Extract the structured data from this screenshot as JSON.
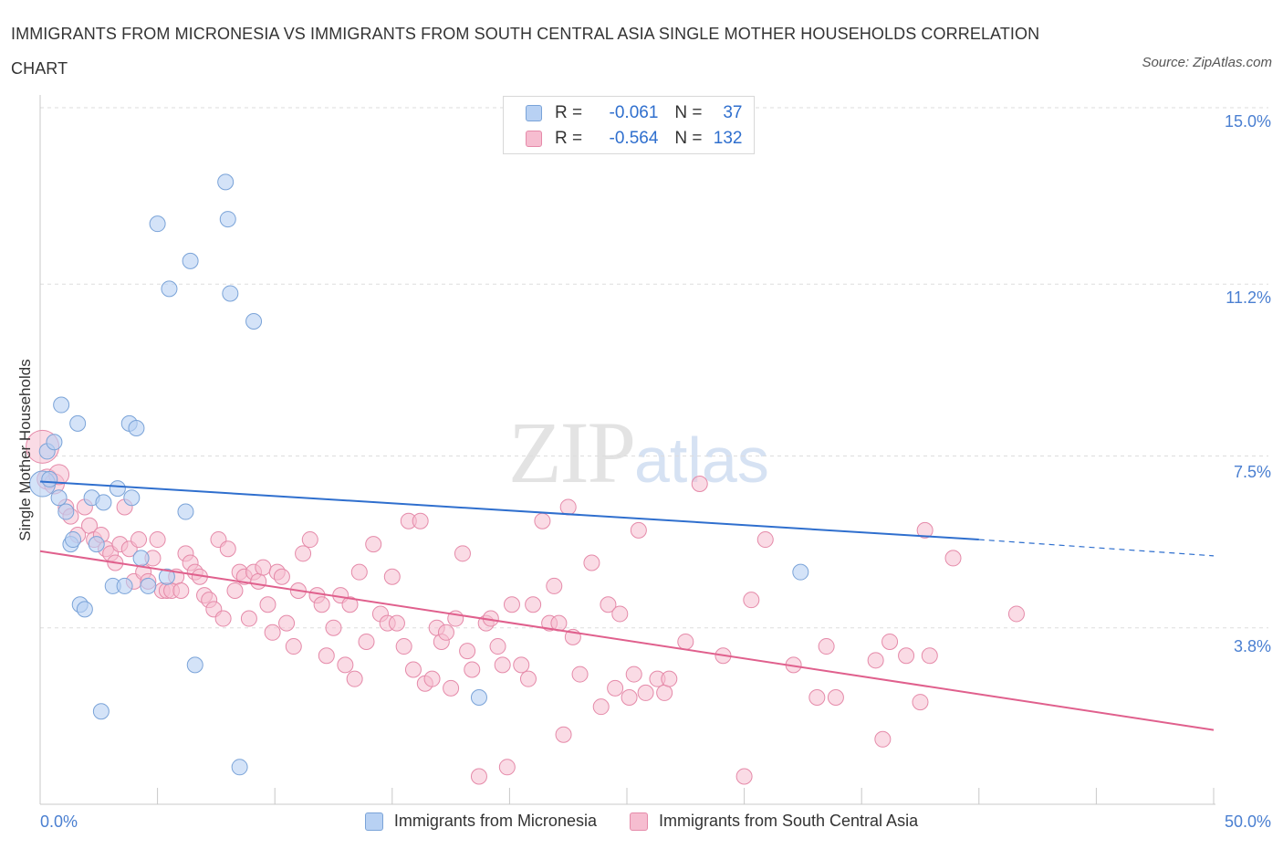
{
  "header": {
    "title": "IMMIGRANTS FROM MICRONESIA VS IMMIGRANTS FROM SOUTH CENTRAL ASIA SINGLE MOTHER HOUSEHOLDS CORRELATION CHART",
    "source": "Source: ZipAtlas.com"
  },
  "watermark": {
    "zip": "ZIP",
    "atlas": "atlas"
  },
  "legend_top": {
    "r_label": "R =",
    "n_label": "N =",
    "series": [
      {
        "r": "-0.061",
        "n": "37"
      },
      {
        "r": "-0.564",
        "n": "132"
      }
    ]
  },
  "axes": {
    "x_min_label": "0.0%",
    "x_max_label": "50.0%",
    "y_labels": [
      "15.0%",
      "11.2%",
      "7.5%",
      "3.8%"
    ],
    "y_title": "Single Mother Households"
  },
  "legend_bottom": [
    "Immigrants from Micronesia",
    "Immigrants from South Central Asia"
  ],
  "colors": {
    "blue_fill": "#b8d1f3",
    "blue_stroke": "#7aa3d8",
    "blue_line": "#2f6fce",
    "pink_fill": "#f6bdd0",
    "pink_stroke": "#e58aa9",
    "pink_line": "#e0608d",
    "grid": "#dddddd",
    "tick_label": "#4a7fd1"
  },
  "chart_data": {
    "type": "scatter",
    "title": "IMMIGRANTS FROM MICRONESIA VS IMMIGRANTS FROM SOUTH CENTRAL ASIA SINGLE MOTHER HOUSEHOLDS CORRELATION CHART",
    "xlabel": "",
    "ylabel": "Single Mother Households",
    "xlim": [
      0,
      50
    ],
    "ylim": [
      0,
      15
    ],
    "y_ticks": [
      3.8,
      7.5,
      11.2,
      15.0
    ],
    "grid": true,
    "legend_placement": "bottom",
    "series": [
      {
        "name": "Immigrants from Micronesia",
        "r": -0.061,
        "n": 37,
        "trend": {
          "x": [
            0,
            40
          ],
          "y": [
            6.95,
            5.7
          ],
          "dashed_to": [
            50,
            5.35
          ]
        },
        "points": [
          [
            0.1,
            6.9
          ],
          [
            0.3,
            7.6
          ],
          [
            0.4,
            7.0
          ],
          [
            0.6,
            7.8
          ],
          [
            0.8,
            6.6
          ],
          [
            0.9,
            8.6
          ],
          [
            1.1,
            6.3
          ],
          [
            1.3,
            5.6
          ],
          [
            1.4,
            5.7
          ],
          [
            1.6,
            8.2
          ],
          [
            1.7,
            4.3
          ],
          [
            1.9,
            4.2
          ],
          [
            2.2,
            6.6
          ],
          [
            2.4,
            5.6
          ],
          [
            2.6,
            2.0
          ],
          [
            2.7,
            6.5
          ],
          [
            3.1,
            4.7
          ],
          [
            3.3,
            6.8
          ],
          [
            3.6,
            4.7
          ],
          [
            3.8,
            8.2
          ],
          [
            3.9,
            6.6
          ],
          [
            4.1,
            8.1
          ],
          [
            4.3,
            5.3
          ],
          [
            4.6,
            4.7
          ],
          [
            5.0,
            12.5
          ],
          [
            5.4,
            4.9
          ],
          [
            5.5,
            11.1
          ],
          [
            6.2,
            6.3
          ],
          [
            6.4,
            11.7
          ],
          [
            6.6,
            3.0
          ],
          [
            7.9,
            13.4
          ],
          [
            8.0,
            12.6
          ],
          [
            8.1,
            11.0
          ],
          [
            8.5,
            0.8
          ],
          [
            9.1,
            10.4
          ],
          [
            18.7,
            2.3
          ],
          [
            32.4,
            5.0
          ]
        ]
      },
      {
        "name": "Immigrants from South Central Asia",
        "r": -0.564,
        "n": 132,
        "trend": {
          "x": [
            0,
            50
          ],
          "y": [
            5.45,
            1.6
          ]
        },
        "points": [
          [
            0.1,
            7.7
          ],
          [
            0.3,
            7.0
          ],
          [
            0.6,
            6.9
          ],
          [
            0.8,
            7.1
          ],
          [
            1.1,
            6.4
          ],
          [
            1.3,
            6.2
          ],
          [
            1.6,
            5.8
          ],
          [
            1.9,
            6.4
          ],
          [
            2.1,
            6.0
          ],
          [
            2.3,
            5.7
          ],
          [
            2.6,
            5.8
          ],
          [
            2.8,
            5.5
          ],
          [
            3.0,
            5.4
          ],
          [
            3.2,
            5.2
          ],
          [
            3.4,
            5.6
          ],
          [
            3.6,
            6.4
          ],
          [
            3.8,
            5.5
          ],
          [
            4.0,
            4.8
          ],
          [
            4.2,
            5.7
          ],
          [
            4.4,
            5.0
          ],
          [
            4.6,
            4.8
          ],
          [
            4.8,
            5.3
          ],
          [
            5.0,
            5.7
          ],
          [
            5.2,
            4.6
          ],
          [
            5.4,
            4.6
          ],
          [
            5.6,
            4.6
          ],
          [
            5.8,
            4.9
          ],
          [
            6.0,
            4.6
          ],
          [
            6.2,
            5.4
          ],
          [
            6.4,
            5.2
          ],
          [
            6.6,
            5.0
          ],
          [
            6.8,
            4.9
          ],
          [
            7.0,
            4.5
          ],
          [
            7.2,
            4.4
          ],
          [
            7.4,
            4.2
          ],
          [
            7.6,
            5.7
          ],
          [
            7.8,
            4.0
          ],
          [
            8.0,
            5.5
          ],
          [
            8.3,
            4.6
          ],
          [
            8.5,
            5.0
          ],
          [
            8.7,
            4.9
          ],
          [
            8.9,
            4.0
          ],
          [
            9.1,
            5.0
          ],
          [
            9.3,
            4.8
          ],
          [
            9.5,
            5.1
          ],
          [
            9.7,
            4.3
          ],
          [
            9.9,
            3.7
          ],
          [
            10.1,
            5.0
          ],
          [
            10.3,
            4.9
          ],
          [
            10.5,
            3.9
          ],
          [
            10.8,
            3.4
          ],
          [
            11.0,
            4.6
          ],
          [
            11.2,
            5.4
          ],
          [
            11.5,
            5.7
          ],
          [
            11.8,
            4.5
          ],
          [
            12.0,
            4.3
          ],
          [
            12.2,
            3.2
          ],
          [
            12.5,
            3.8
          ],
          [
            12.8,
            4.5
          ],
          [
            13.0,
            3.0
          ],
          [
            13.2,
            4.3
          ],
          [
            13.4,
            2.7
          ],
          [
            13.6,
            5.0
          ],
          [
            13.9,
            3.5
          ],
          [
            14.2,
            5.6
          ],
          [
            14.5,
            4.1
          ],
          [
            14.8,
            3.9
          ],
          [
            15.0,
            4.9
          ],
          [
            15.2,
            3.9
          ],
          [
            15.5,
            3.4
          ],
          [
            15.7,
            6.1
          ],
          [
            15.9,
            2.9
          ],
          [
            16.2,
            6.1
          ],
          [
            16.4,
            2.6
          ],
          [
            16.7,
            2.7
          ],
          [
            16.9,
            3.8
          ],
          [
            17.1,
            3.5
          ],
          [
            17.3,
            3.7
          ],
          [
            17.5,
            2.5
          ],
          [
            17.7,
            4.0
          ],
          [
            18.0,
            5.4
          ],
          [
            18.2,
            3.3
          ],
          [
            18.4,
            2.9
          ],
          [
            18.7,
            0.6
          ],
          [
            19.0,
            3.9
          ],
          [
            19.2,
            4.0
          ],
          [
            19.5,
            3.4
          ],
          [
            19.7,
            3.0
          ],
          [
            19.9,
            0.8
          ],
          [
            20.1,
            4.3
          ],
          [
            20.5,
            3.0
          ],
          [
            20.8,
            2.7
          ],
          [
            21.0,
            4.3
          ],
          [
            21.4,
            6.1
          ],
          [
            21.7,
            3.9
          ],
          [
            21.9,
            4.7
          ],
          [
            22.1,
            3.9
          ],
          [
            22.3,
            1.5
          ],
          [
            22.5,
            6.4
          ],
          [
            22.7,
            3.6
          ],
          [
            23.0,
            2.8
          ],
          [
            23.5,
            5.2
          ],
          [
            23.9,
            2.1
          ],
          [
            24.2,
            4.3
          ],
          [
            24.5,
            2.5
          ],
          [
            24.7,
            4.1
          ],
          [
            25.1,
            2.3
          ],
          [
            25.3,
            2.8
          ],
          [
            25.5,
            5.9
          ],
          [
            25.8,
            2.4
          ],
          [
            26.3,
            2.7
          ],
          [
            26.6,
            2.4
          ],
          [
            26.8,
            2.7
          ],
          [
            27.5,
            3.5
          ],
          [
            28.1,
            6.9
          ],
          [
            29.1,
            3.2
          ],
          [
            30.0,
            0.6
          ],
          [
            30.3,
            4.4
          ],
          [
            30.9,
            5.7
          ],
          [
            32.1,
            3.0
          ],
          [
            33.1,
            2.3
          ],
          [
            33.5,
            3.4
          ],
          [
            33.9,
            2.3
          ],
          [
            35.6,
            3.1
          ],
          [
            35.9,
            1.4
          ],
          [
            36.2,
            3.5
          ],
          [
            36.9,
            3.2
          ],
          [
            37.5,
            2.2
          ],
          [
            37.7,
            5.9
          ],
          [
            37.9,
            3.2
          ],
          [
            38.9,
            5.3
          ],
          [
            41.6,
            4.1
          ]
        ]
      }
    ]
  }
}
